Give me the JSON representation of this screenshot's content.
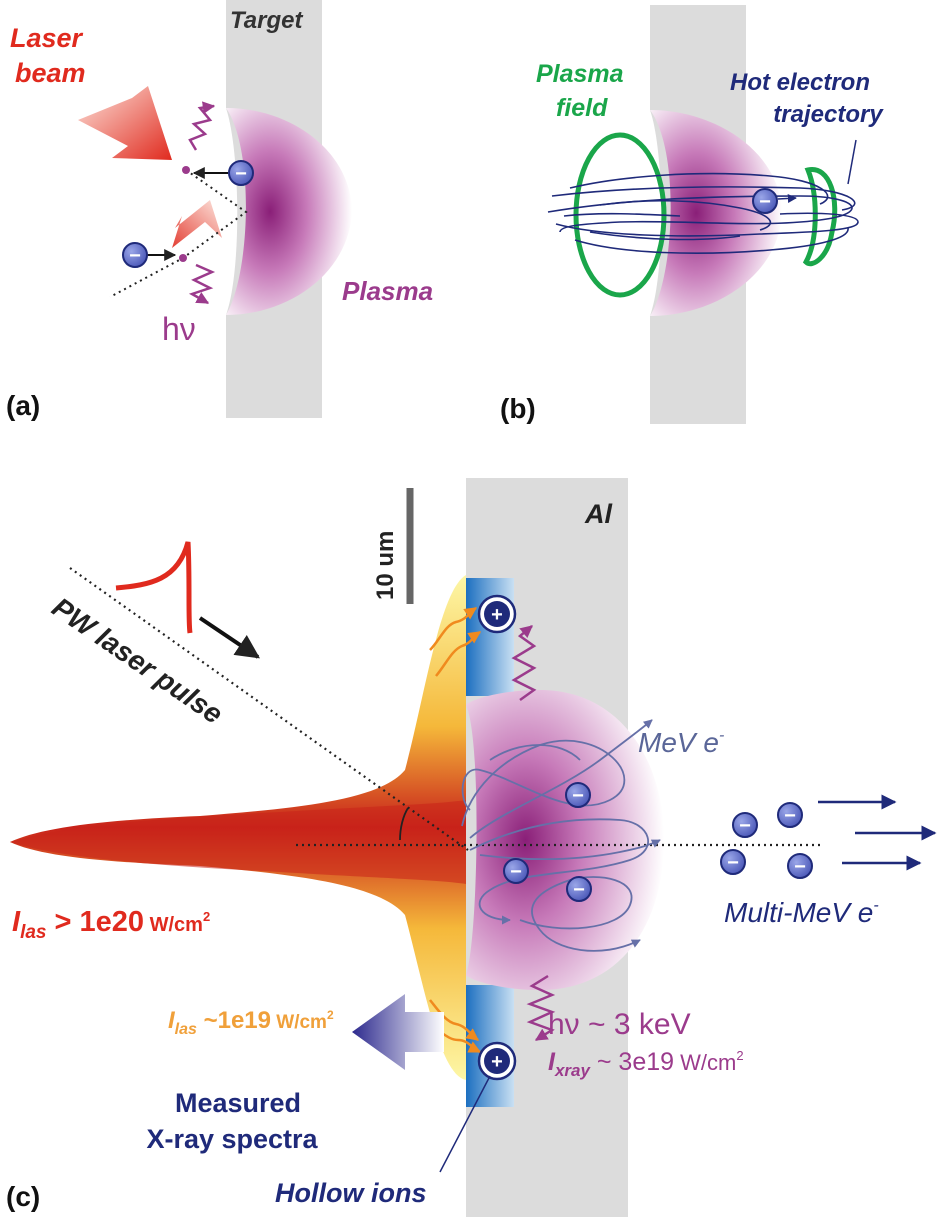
{
  "panel_a": {
    "tag": "(a)",
    "target_label": "Target",
    "laser_label_line1": "Laser",
    "laser_label_line2": "beam",
    "plasma_label": "Plasma",
    "photon_label": "hν",
    "electron_symbol": "−"
  },
  "panel_b": {
    "tag": "(b)",
    "plasma_field_line1": "Plasma",
    "plasma_field_line2": "field",
    "hot_electron_line1": "Hot electron",
    "hot_electron_line2": "trajectory",
    "electron_symbol": "−"
  },
  "panel_c": {
    "tag": "(c)",
    "material_label": "Al",
    "scale_label": "10 um",
    "pulse_label": "PW laser pulse",
    "mev_label": "MeV e",
    "mev_sup": "-",
    "multi_mev_label": "Multi-MeV e",
    "multi_mev_sup": "-",
    "ilas_high_sym": "I",
    "ilas_high_sub": "las",
    "ilas_high_value": " > 1e20",
    "ilas_high_unit": " W/cm",
    "ilas_high_unit_sup": "2",
    "ilas_low_sym": "I",
    "ilas_low_sub": "las",
    "ilas_low_value": " ~1e19",
    "ilas_low_unit": " W/cm",
    "ilas_low_unit_sup": "2",
    "hv_line": "hν ~ 3 keV",
    "ixray_sym": "I",
    "ixray_sub": "xray",
    "ixray_value": " ~ 3e19",
    "ixray_unit": " W/cm",
    "ixray_unit_sup": "2",
    "measured_line1": "Measured",
    "measured_line2": "X-ray spectra",
    "hollow_ions_label": "Hollow ions",
    "ion_symbol": "+",
    "electron_symbol": "−"
  },
  "colors": {
    "laser_red": "#e02a1e",
    "plasma_purple": "#9b3b8c",
    "plasma_green": "#1aa64a",
    "electron_navy": "#1f2a7a",
    "intensity_orange": "#f0a03a",
    "target_gray": "#dcdcdc",
    "ion_blue": "#1c77c3"
  }
}
